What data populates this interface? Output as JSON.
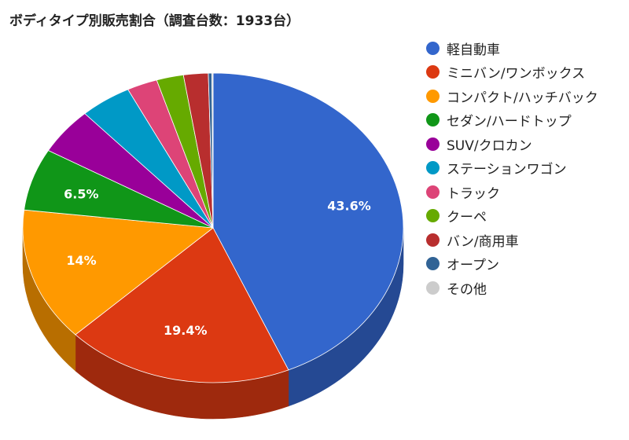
{
  "chart_data": {
    "type": "pie",
    "title": "ボディタイプ別販売割合（調査台数：1933台）",
    "legend_position": "right",
    "slices": [
      {
        "name": "軽自動車",
        "value": 43.6,
        "label": "43.6%",
        "color": "#3366cc"
      },
      {
        "name": "ミニバン/ワンボックス",
        "value": 19.4,
        "label": "19.4%",
        "color": "#dc3912"
      },
      {
        "name": "コンパクト/ハッチバック",
        "value": 14.0,
        "label": "14%",
        "color": "#ff9900"
      },
      {
        "name": "セダン/ハードトップ",
        "value": 6.5,
        "label": "6.5%",
        "color": "#109618"
      },
      {
        "name": "SUV/クロカン",
        "value": 4.9,
        "label": "",
        "color": "#990099"
      },
      {
        "name": "ステーションワゴン",
        "value": 4.4,
        "label": "",
        "color": "#0099c6"
      },
      {
        "name": "トラック",
        "value": 2.6,
        "label": "",
        "color": "#dd4477"
      },
      {
        "name": "クーペ",
        "value": 2.3,
        "label": "",
        "color": "#66aa00"
      },
      {
        "name": "バン/商用車",
        "value": 2.1,
        "label": "",
        "color": "#b82e2e"
      },
      {
        "name": "オープン",
        "value": 0.3,
        "label": "",
        "color": "#316395"
      },
      {
        "name": "その他",
        "value": 0.1,
        "label": "",
        "color": "#cccccc"
      }
    ]
  }
}
